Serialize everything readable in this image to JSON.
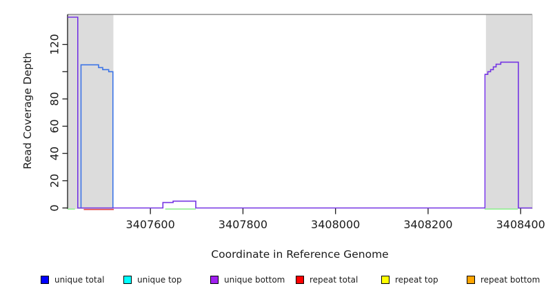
{
  "figure": {
    "background": "#ffffff",
    "frame_top_color": "#8c8c8c",
    "frame_right_color": "#c4c4c4",
    "axis_color": "#1a1a1a",
    "band_color": "#dcdcdc"
  },
  "chart_data": {
    "type": "line",
    "title": "",
    "xlabel": "Coordinate in Reference Genome",
    "ylabel": "Read Coverage Depth",
    "xlim": [
      3407421,
      3408425
    ],
    "ylim": [
      0,
      142
    ],
    "grid": false,
    "x_ticks": [
      3407600,
      3407800,
      3408000,
      3408200,
      3408400
    ],
    "x_tick_labels": [
      "3407600",
      "3407800",
      "3408000",
      "3408200",
      "3408400"
    ],
    "y_ticks": [
      0,
      20,
      40,
      60,
      80,
      100,
      120
    ],
    "y_tick_labels": [
      "0",
      "20",
      "40",
      "60",
      "80",
      "",
      "120"
    ],
    "highlighted_regions": [
      {
        "name": "left-gray-band",
        "from": 3407421,
        "to": 3407520
      },
      {
        "name": "right-gray-band",
        "from": 3408325,
        "to": 3408425
      }
    ],
    "series": [
      {
        "name": "unique total",
        "color": "#3c74e6",
        "steps": [
          [
            3407450,
            0
          ],
          [
            3407450,
            105
          ],
          [
            3407488,
            105
          ],
          [
            3407488,
            103
          ],
          [
            3407497,
            103
          ],
          [
            3407497,
            101.5
          ],
          [
            3407510,
            101.5
          ],
          [
            3407510,
            100
          ],
          [
            3407519,
            100
          ],
          [
            3407519,
            0
          ]
        ]
      },
      {
        "name": "unique bottom",
        "color": "#7433e3",
        "steps": [
          [
            3407421,
            140
          ],
          [
            3407443,
            140
          ],
          [
            3407443,
            0
          ],
          [
            3407627,
            0
          ],
          [
            3407627,
            4
          ],
          [
            3407649,
            4
          ],
          [
            3407649,
            5
          ],
          [
            3407698,
            5
          ],
          [
            3407698,
            0
          ],
          [
            3408323,
            0
          ],
          [
            3408323,
            98
          ],
          [
            3408329,
            98
          ],
          [
            3408329,
            100
          ],
          [
            3408335,
            100
          ],
          [
            3408335,
            101.5
          ],
          [
            3408341,
            101.5
          ],
          [
            3408341,
            103.5
          ],
          [
            3408347,
            103.5
          ],
          [
            3408347,
            105.5
          ],
          [
            3408357,
            105.5
          ],
          [
            3408357,
            107
          ],
          [
            3408395,
            107
          ],
          [
            3408395,
            0
          ],
          [
            3408425,
            0
          ]
        ]
      }
    ],
    "baseline_segments": [
      {
        "name": "repeat-total-baseline",
        "color": "#e04545",
        "from": 3407456,
        "to": 3407521,
        "value": 0
      },
      {
        "name": "top-overlap-baseline",
        "color": "#90ee90",
        "from": 3407421,
        "to": 3407437,
        "value": 0
      },
      {
        "name": "top-overlap-baseline",
        "color": "#90ee90",
        "from": 3407632,
        "to": 3407698,
        "value": 0
      },
      {
        "name": "top-overlap-baseline",
        "color": "#90ee90",
        "from": 3408322,
        "to": 3408394,
        "value": 0
      }
    ],
    "legend": {
      "position": "bottom",
      "items": [
        {
          "label": "unique total",
          "color": "#0000ff"
        },
        {
          "label": "unique top",
          "color": "#00ffff"
        },
        {
          "label": "unique bottom",
          "color": "#a020f0"
        },
        {
          "label": "repeat total",
          "color": "#ff0000"
        },
        {
          "label": "repeat top",
          "color": "#ffff00"
        },
        {
          "label": "repeat bottom",
          "color": "#ffa500"
        }
      ]
    }
  }
}
